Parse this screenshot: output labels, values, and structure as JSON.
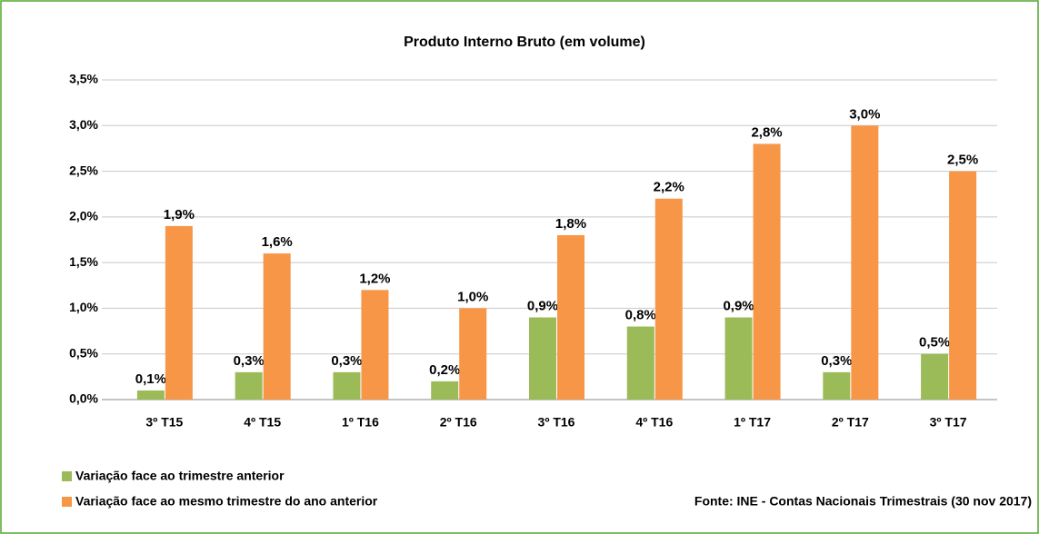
{
  "chart_data": {
    "type": "bar",
    "title": "Produto Interno Bruto (em volume)",
    "source": "Fonte: INE - Contas Nacionais Trimestrais (30 nov 2017)",
    "categories": [
      "3º T15",
      "4º T15",
      "1º T16",
      "2º T16",
      "3º T16",
      "4º T16",
      "1º T17",
      "2º T17",
      "3º T17"
    ],
    "series": [
      {
        "name": "Variação face ao trimestre anterior",
        "color": "#9bbb59",
        "values": [
          0.1,
          0.3,
          0.3,
          0.2,
          0.9,
          0.8,
          0.9,
          0.3,
          0.5
        ],
        "value_labels": [
          "0,1%",
          "0,3%",
          "0,3%",
          "0,2%",
          "0,9%",
          "0,8%",
          "0,9%",
          "0,3%",
          "0,5%"
        ]
      },
      {
        "name": "Variação face ao mesmo trimestre do ano anterior",
        "color": "#f79646",
        "values": [
          1.9,
          1.6,
          1.2,
          1.0,
          1.8,
          2.2,
          2.8,
          3.0,
          2.5
        ],
        "value_labels": [
          "1,9%",
          "1,6%",
          "1,2%",
          "1,0%",
          "1,8%",
          "2,2%",
          "2,8%",
          "3,0%",
          "2,5%"
        ]
      }
    ],
    "ylim": [
      0,
      3.5
    ],
    "yticks": [
      {
        "value": 0,
        "label": "0,0%"
      },
      {
        "value": 0.5,
        "label": "0,5%"
      },
      {
        "value": 1,
        "label": "1,0%"
      },
      {
        "value": 1.5,
        "label": "1,5%"
      },
      {
        "value": 2,
        "label": "2,0%"
      },
      {
        "value": 2.5,
        "label": "2,5%"
      },
      {
        "value": 3,
        "label": "3,0%"
      },
      {
        "value": 3.5,
        "label": "3,5%"
      }
    ],
    "grid": true,
    "legend": "bottom-left"
  }
}
